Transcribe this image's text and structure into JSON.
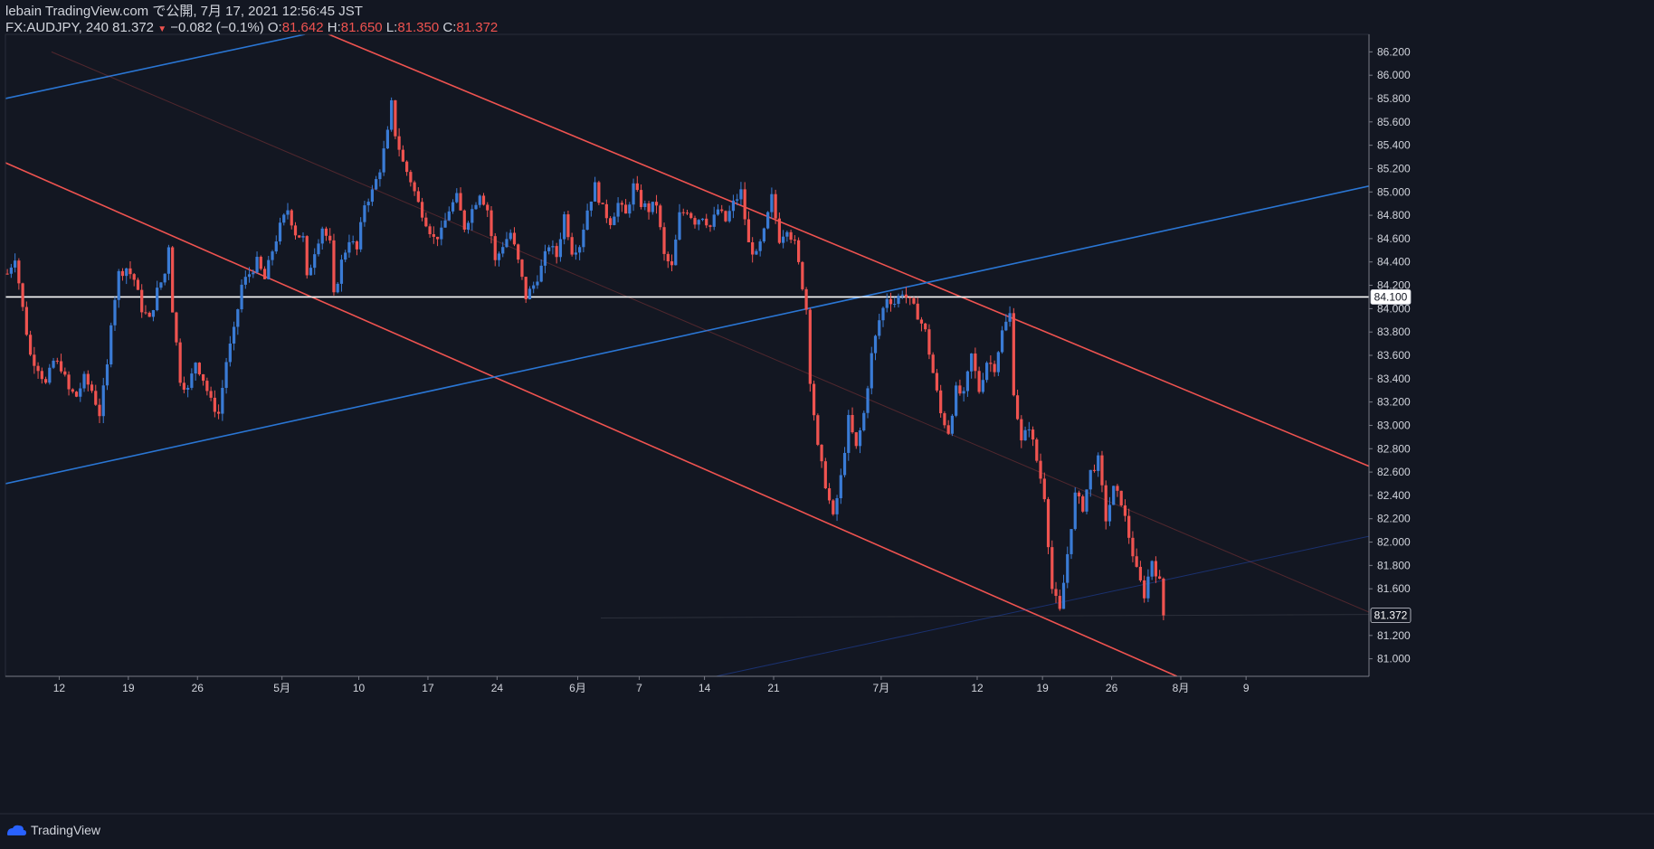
{
  "header": {
    "line1": "lebain TradingView.com で公開, 7月 17, 2021 12:56:45 JST",
    "symbol": "FX:AUDJPY, 240",
    "last": "81.372",
    "change": "−0.082 (−0.1%)",
    "o_label": "O:",
    "o_val": "81.642",
    "h_label": "H:",
    "h_val": "81.650",
    "l_label": "L:",
    "l_val": "81.350",
    "c_label": "C:",
    "c_val": "81.372"
  },
  "footer": {
    "brand": "TradingView"
  },
  "colors": {
    "background": "#131722",
    "up": "#2962ff",
    "up_wick": "#3a7bd5",
    "down": "#ef5350",
    "channel_red": "#ef5350",
    "channel_blue": "#2a76d4",
    "horizontal": "#ffffff",
    "text": "#d1d4dc"
  },
  "chart_data": {
    "type": "candlestick",
    "symbol": "FX:AUDJPY",
    "interval": "240",
    "ylim": [
      80.85,
      86.35
    ],
    "y_ticks": [
      "86.200",
      "86.000",
      "85.800",
      "85.600",
      "85.400",
      "85.200",
      "85.000",
      "84.800",
      "84.600",
      "84.400",
      "84.200",
      "84.000",
      "83.800",
      "83.600",
      "83.400",
      "83.200",
      "83.000",
      "82.800",
      "82.600",
      "82.400",
      "82.200",
      "82.000",
      "81.800",
      "81.600",
      "81.200",
      "81.000"
    ],
    "x_ticks": [
      "12",
      "19",
      "26",
      "5月",
      "10",
      "17",
      "24",
      "6月",
      "7",
      "14",
      "21",
      "7月",
      "12",
      "19",
      "26",
      "8月",
      "9"
    ],
    "price_labels": [
      {
        "text": "84.100",
        "value": 84.1
      },
      {
        "text": "81.372",
        "value": 81.372
      }
    ],
    "horizontal_line": 84.1,
    "close_path": [
      [
        0,
        84.3
      ],
      [
        2,
        84.45
      ],
      [
        4,
        84.0
      ],
      [
        6,
        83.6
      ],
      [
        8,
        83.5
      ],
      [
        10,
        83.35
      ],
      [
        12,
        83.55
      ],
      [
        14,
        83.5
      ],
      [
        16,
        83.3
      ],
      [
        18,
        83.25
      ],
      [
        20,
        83.4
      ],
      [
        22,
        83.3
      ],
      [
        24,
        83.1
      ],
      [
        26,
        83.5
      ],
      [
        27,
        83.9
      ],
      [
        29,
        84.3
      ],
      [
        31,
        84.35
      ],
      [
        33,
        84.25
      ],
      [
        35,
        84.0
      ],
      [
        37,
        83.9
      ],
      [
        39,
        84.15
      ],
      [
        41,
        84.3
      ],
      [
        42,
        84.55
      ],
      [
        43,
        84.0
      ],
      [
        45,
        83.4
      ],
      [
        47,
        83.3
      ],
      [
        49,
        83.55
      ],
      [
        51,
        83.4
      ],
      [
        53,
        83.2
      ],
      [
        55,
        83.1
      ],
      [
        57,
        83.55
      ],
      [
        59,
        83.8
      ],
      [
        61,
        84.2
      ],
      [
        63,
        84.3
      ],
      [
        65,
        84.4
      ],
      [
        67,
        84.25
      ],
      [
        69,
        84.5
      ],
      [
        71,
        84.7
      ],
      [
        73,
        84.85
      ],
      [
        75,
        84.65
      ],
      [
        77,
        84.6
      ],
      [
        78,
        84.25
      ],
      [
        80,
        84.5
      ],
      [
        82,
        84.7
      ],
      [
        84,
        84.55
      ],
      [
        85,
        84.1
      ],
      [
        87,
        84.4
      ],
      [
        89,
        84.6
      ],
      [
        91,
        84.5
      ],
      [
        93,
        84.9
      ],
      [
        95,
        85.0
      ],
      [
        97,
        85.2
      ],
      [
        99,
        85.5
      ],
      [
        100,
        85.75
      ],
      [
        101,
        85.5
      ],
      [
        103,
        85.25
      ],
      [
        105,
        85.1
      ],
      [
        107,
        84.9
      ],
      [
        109,
        84.75
      ],
      [
        111,
        84.6
      ],
      [
        113,
        84.65
      ],
      [
        115,
        84.85
      ],
      [
        117,
        84.95
      ],
      [
        119,
        84.7
      ],
      [
        121,
        84.85
      ],
      [
        123,
        85.0
      ],
      [
        125,
        84.85
      ],
      [
        127,
        84.4
      ],
      [
        129,
        84.55
      ],
      [
        131,
        84.65
      ],
      [
        133,
        84.4
      ],
      [
        135,
        84.1
      ],
      [
        137,
        84.2
      ],
      [
        139,
        84.35
      ],
      [
        141,
        84.55
      ],
      [
        143,
        84.45
      ],
      [
        145,
        84.8
      ],
      [
        147,
        84.5
      ],
      [
        149,
        84.55
      ],
      [
        151,
        84.85
      ],
      [
        153,
        85.05
      ],
      [
        155,
        84.85
      ],
      [
        157,
        84.75
      ],
      [
        159,
        84.9
      ],
      [
        161,
        84.8
      ],
      [
        163,
        85.05
      ],
      [
        165,
        84.9
      ],
      [
        167,
        84.85
      ],
      [
        169,
        84.9
      ],
      [
        171,
        84.45
      ],
      [
        173,
        84.35
      ],
      [
        175,
        84.8
      ],
      [
        177,
        84.85
      ],
      [
        179,
        84.75
      ],
      [
        181,
        84.8
      ],
      [
        183,
        84.7
      ],
      [
        185,
        84.85
      ],
      [
        187,
        84.75
      ],
      [
        189,
        84.9
      ],
      [
        191,
        85.0
      ],
      [
        193,
        84.55
      ],
      [
        195,
        84.45
      ],
      [
        197,
        84.65
      ],
      [
        199,
        84.95
      ],
      [
        201,
        84.6
      ],
      [
        203,
        84.7
      ],
      [
        205,
        84.55
      ],
      [
        207,
        84.2
      ],
      [
        208,
        84.0
      ],
      [
        209,
        83.4
      ],
      [
        211,
        82.8
      ],
      [
        213,
        82.5
      ],
      [
        215,
        82.2
      ],
      [
        217,
        82.55
      ],
      [
        219,
        83.05
      ],
      [
        221,
        82.8
      ],
      [
        223,
        83.1
      ],
      [
        225,
        83.6
      ],
      [
        227,
        83.9
      ],
      [
        229,
        84.1
      ],
      [
        231,
        84.05
      ],
      [
        233,
        84.15
      ],
      [
        235,
        84.05
      ],
      [
        237,
        83.95
      ],
      [
        239,
        83.8
      ],
      [
        241,
        83.45
      ],
      [
        243,
        83.1
      ],
      [
        245,
        82.95
      ],
      [
        247,
        83.3
      ],
      [
        249,
        83.25
      ],
      [
        251,
        83.6
      ],
      [
        253,
        83.3
      ],
      [
        255,
        83.55
      ],
      [
        257,
        83.5
      ],
      [
        259,
        83.8
      ],
      [
        261,
        83.95
      ],
      [
        262,
        83.3
      ],
      [
        264,
        82.85
      ],
      [
        266,
        83.0
      ],
      [
        268,
        82.7
      ],
      [
        270,
        82.4
      ],
      [
        272,
        81.6
      ],
      [
        274,
        81.4
      ],
      [
        276,
        81.9
      ],
      [
        278,
        82.4
      ],
      [
        280,
        82.3
      ],
      [
        282,
        82.6
      ],
      [
        284,
        82.7
      ],
      [
        286,
        82.2
      ],
      [
        288,
        82.45
      ],
      [
        290,
        82.35
      ],
      [
        292,
        82.05
      ],
      [
        294,
        81.75
      ],
      [
        296,
        81.55
      ],
      [
        298,
        81.85
      ],
      [
        300,
        81.65
      ],
      [
        301,
        81.372
      ]
    ],
    "trend_lines": [
      {
        "name": "red-channel-upper",
        "color": "red",
        "width": 1.6,
        "from": [
          0,
          87.5
        ],
        "to": [
          355,
          82.65
        ]
      },
      {
        "name": "red-channel-lower",
        "color": "red",
        "width": 1.6,
        "from": [
          0,
          85.25
        ],
        "to": [
          305,
          80.85
        ]
      },
      {
        "name": "blue-upper",
        "color": "blue",
        "width": 1.6,
        "from": [
          0,
          85.8
        ],
        "to": [
          78,
          86.35
        ]
      },
      {
        "name": "blue-trend",
        "color": "blue",
        "width": 1.6,
        "from": [
          0,
          82.5
        ],
        "to": [
          355,
          85.05
        ]
      },
      {
        "name": "red-mid-faint",
        "color": "red-faint",
        "width": 1,
        "from": [
          12,
          86.2
        ],
        "to": [
          355,
          81.4
        ]
      },
      {
        "name": "blue-faint",
        "color": "blue-faint",
        "width": 1,
        "from": [
          185,
          80.85
        ],
        "to": [
          355,
          82.05
        ]
      },
      {
        "name": "gray-faint",
        "color": "gray-faint",
        "width": 1,
        "from": [
          155,
          81.35
        ],
        "to": [
          355,
          81.38
        ]
      }
    ]
  }
}
